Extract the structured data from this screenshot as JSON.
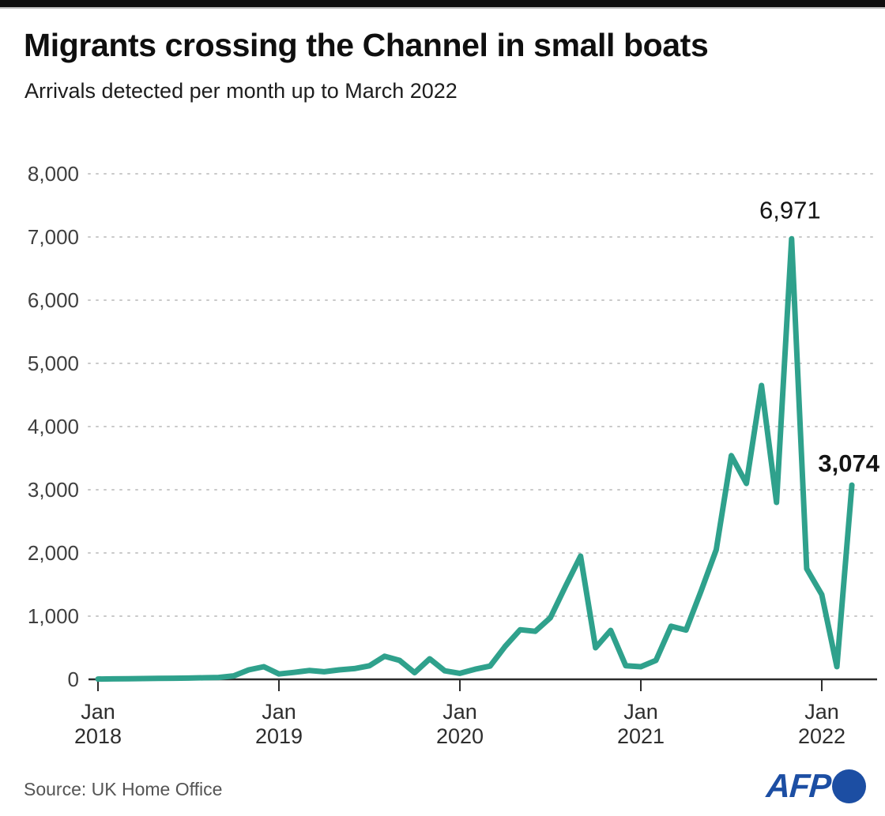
{
  "header": {
    "bar_color": "#0f0f0f"
  },
  "footer": {
    "source": "Source: UK Home Office",
    "brand": "AFP",
    "brand_color": "#1c4ea3"
  },
  "chart_data": {
    "type": "line",
    "title": "Migrants crossing the Channel in small boats",
    "subtitle": "Arrivals detected per month up to March 2022",
    "xlabel": "",
    "ylabel": "",
    "ylim": [
      0,
      8000
    ],
    "grid": "horizontal-dashed",
    "legend": "none",
    "line_color": "#2fa18c",
    "grid_color": "#c9c9c9",
    "axis_color": "#2c2c2c",
    "yticks": [
      {
        "value": 0,
        "label": "0"
      },
      {
        "value": 1000,
        "label": "1,000"
      },
      {
        "value": 2000,
        "label": "2,000"
      },
      {
        "value": 3000,
        "label": "3,000"
      },
      {
        "value": 4000,
        "label": "4,000"
      },
      {
        "value": 5000,
        "label": "5,000"
      },
      {
        "value": 6000,
        "label": "6,000"
      },
      {
        "value": 7000,
        "label": "7,000"
      },
      {
        "value": 8000,
        "label": "8,000"
      }
    ],
    "xticks": [
      {
        "month": "Jan",
        "year": "2018",
        "index": 0
      },
      {
        "month": "Jan",
        "year": "2019",
        "index": 12
      },
      {
        "month": "Jan",
        "year": "2020",
        "index": 24
      },
      {
        "month": "Jan",
        "year": "2021",
        "index": 36
      },
      {
        "month": "Jan",
        "year": "2022",
        "index": 48
      }
    ],
    "months": [
      "2018-01",
      "2018-02",
      "2018-03",
      "2018-04",
      "2018-05",
      "2018-06",
      "2018-07",
      "2018-08",
      "2018-09",
      "2018-10",
      "2018-11",
      "2018-12",
      "2019-01",
      "2019-02",
      "2019-03",
      "2019-04",
      "2019-05",
      "2019-06",
      "2019-07",
      "2019-08",
      "2019-09",
      "2019-10",
      "2019-11",
      "2019-12",
      "2020-01",
      "2020-02",
      "2020-03",
      "2020-04",
      "2020-05",
      "2020-06",
      "2020-07",
      "2020-08",
      "2020-09",
      "2020-10",
      "2020-11",
      "2020-12",
      "2021-01",
      "2021-02",
      "2021-03",
      "2021-04",
      "2021-05",
      "2021-06",
      "2021-07",
      "2021-08",
      "2021-09",
      "2021-10",
      "2021-11",
      "2021-12",
      "2022-01",
      "2022-02",
      "2022-03"
    ],
    "values": [
      5,
      8,
      10,
      12,
      15,
      18,
      20,
      25,
      30,
      55,
      150,
      200,
      85,
      110,
      140,
      120,
      150,
      170,
      215,
      365,
      300,
      105,
      325,
      135,
      95,
      160,
      210,
      520,
      785,
      760,
      975,
      1470,
      1950,
      500,
      775,
      215,
      200,
      300,
      840,
      780,
      1400,
      2050,
      3540,
      3100,
      4650,
      2800,
      6971,
      1750,
      1340,
      200,
      3074
    ],
    "annotations": [
      {
        "text": "6,971",
        "month": "2021-11",
        "month_index": 46,
        "value": 6971,
        "weight": "normal",
        "placement": "above"
      },
      {
        "text": "3,074",
        "month": "2022-03",
        "month_index": 50,
        "value": 3074,
        "weight": "bold",
        "placement": "upper-right"
      }
    ]
  }
}
